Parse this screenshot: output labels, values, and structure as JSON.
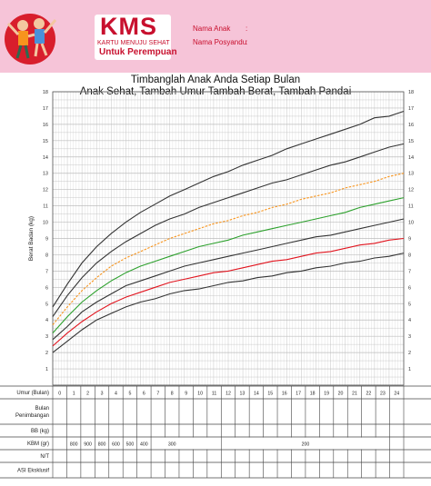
{
  "header": {
    "brand": "KMS",
    "subtitle": "KARTU MENUJU SEHAT",
    "variant": "Untuk Perempuan",
    "fields": [
      "Nama Anak",
      "Nama Posyandu"
    ]
  },
  "titles": {
    "line1": "Timbanglah Anak Anda Setiap Bulan",
    "line2": "Anak Sehat, Tambah Umur Tambah Berat, Tambah Pandai"
  },
  "chart_data": {
    "type": "line",
    "title": "",
    "xlabel": "",
    "ylabel": "Berat Badan (kg)",
    "ylim": [
      0,
      18
    ],
    "xlim": [
      0,
      24
    ],
    "y_ticks": [
      1,
      2,
      3,
      4,
      5,
      6,
      7,
      8,
      9,
      10,
      11,
      12,
      13,
      14,
      15,
      16,
      17,
      18
    ],
    "x": [
      0,
      1,
      2,
      3,
      4,
      5,
      6,
      7,
      8,
      9,
      10,
      11,
      12,
      13,
      14,
      15,
      16,
      17,
      18,
      19,
      20,
      21,
      22,
      23,
      24
    ],
    "grid": true,
    "series": [
      {
        "color": "#333333",
        "values": [
          2.0,
          2.7,
          3.4,
          4.0,
          4.4,
          4.8,
          5.1,
          5.3,
          5.6,
          5.8,
          5.9,
          6.1,
          6.3,
          6.4,
          6.6,
          6.7,
          6.9,
          7.0,
          7.2,
          7.3,
          7.5,
          7.6,
          7.8,
          7.9,
          8.1
        ]
      },
      {
        "color": "#e1141e",
        "values": [
          2.4,
          3.2,
          3.9,
          4.5,
          5.0,
          5.4,
          5.7,
          6.0,
          6.3,
          6.5,
          6.7,
          6.9,
          7.0,
          7.2,
          7.4,
          7.6,
          7.7,
          7.9,
          8.1,
          8.2,
          8.4,
          8.6,
          8.7,
          8.9,
          9.0
        ]
      },
      {
        "color": "#333333",
        "values": [
          2.8,
          3.6,
          4.5,
          5.1,
          5.6,
          6.1,
          6.4,
          6.7,
          7.0,
          7.3,
          7.5,
          7.7,
          7.9,
          8.1,
          8.3,
          8.5,
          8.7,
          8.9,
          9.1,
          9.2,
          9.4,
          9.6,
          9.8,
          10.0,
          10.2
        ]
      },
      {
        "color": "#2ca02c",
        "values": [
          3.2,
          4.2,
          5.1,
          5.8,
          6.4,
          6.9,
          7.3,
          7.6,
          7.9,
          8.2,
          8.5,
          8.7,
          8.9,
          9.2,
          9.4,
          9.6,
          9.8,
          10.0,
          10.2,
          10.4,
          10.6,
          10.9,
          11.1,
          11.3,
          11.5
        ]
      },
      {
        "color": "#f7941d",
        "values": [
          3.7,
          4.8,
          5.8,
          6.6,
          7.3,
          7.8,
          8.2,
          8.6,
          9.0,
          9.3,
          9.6,
          9.9,
          10.1,
          10.4,
          10.6,
          10.9,
          11.1,
          11.4,
          11.6,
          11.8,
          12.1,
          12.3,
          12.5,
          12.8,
          13.0
        ]
      },
      {
        "color": "#333333",
        "values": [
          4.2,
          5.5,
          6.6,
          7.5,
          8.2,
          8.8,
          9.3,
          9.8,
          10.2,
          10.5,
          10.9,
          11.2,
          11.5,
          11.8,
          12.1,
          12.4,
          12.6,
          12.9,
          13.2,
          13.5,
          13.7,
          14.0,
          14.3,
          14.6,
          14.8
        ]
      },
      {
        "color": "#333333",
        "values": [
          4.8,
          6.2,
          7.5,
          8.5,
          9.3,
          10.0,
          10.6,
          11.1,
          11.6,
          12.0,
          12.4,
          12.8,
          13.1,
          13.5,
          13.8,
          14.1,
          14.5,
          14.8,
          15.1,
          15.4,
          15.7,
          16.0,
          16.4,
          16.5,
          16.8
        ]
      }
    ]
  },
  "table": {
    "rows": [
      "Umur (Bulan)",
      "Bulan\nPenimbangan",
      "BB (kg)",
      "KBM (gr)",
      "N/T",
      "ASI Eksklusif"
    ],
    "months": [
      "0",
      "1",
      "2",
      "3",
      "4",
      "5",
      "6",
      "7",
      "8",
      "9",
      "10",
      "11",
      "12",
      "13",
      "14",
      "15",
      "16",
      "17",
      "18",
      "19",
      "20",
      "21",
      "22",
      "23",
      "24"
    ],
    "kbm": [
      "800",
      "900",
      "800",
      "600",
      "500",
      "400"
    ],
    "kbm_mid": "300",
    "kbm_late": "200"
  },
  "colors": {
    "header_bg": "#f6c4d8",
    "brand": "#c8102e",
    "grid": "#c8c8c8"
  }
}
